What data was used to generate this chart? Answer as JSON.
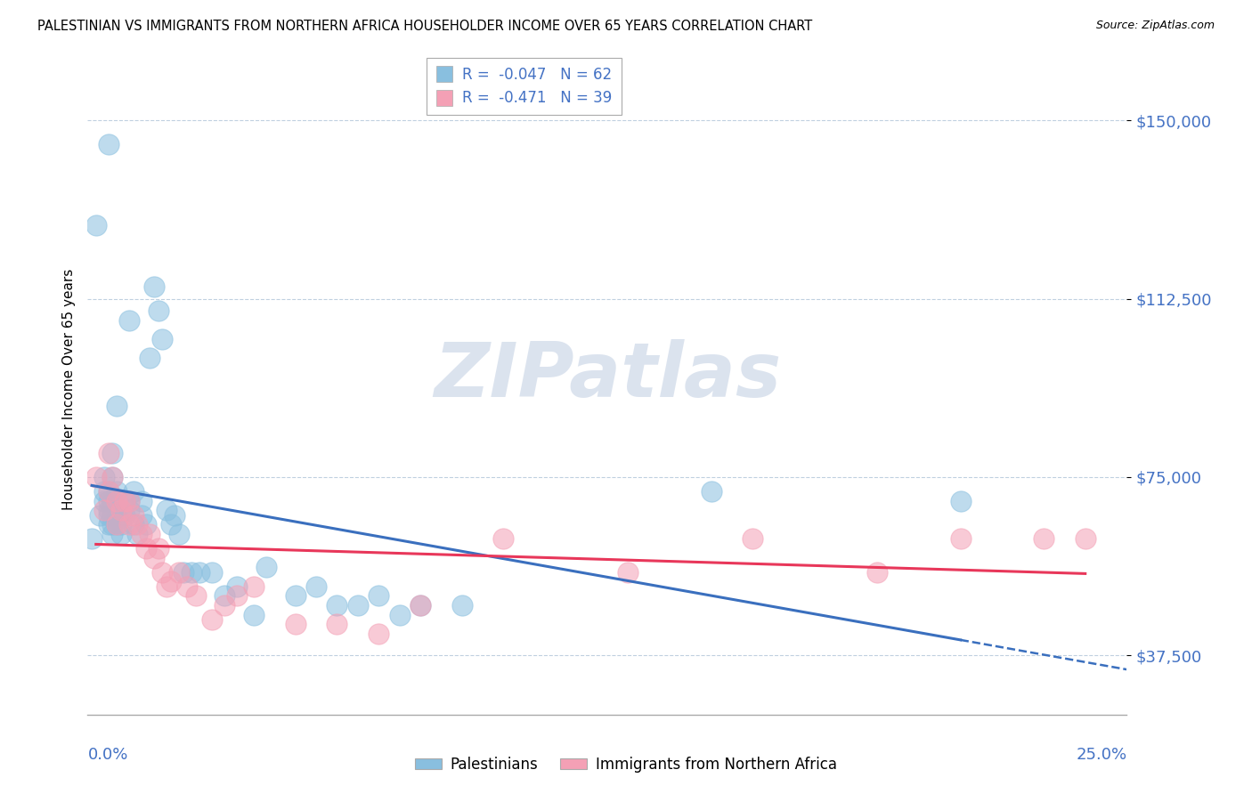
{
  "title": "PALESTINIAN VS IMMIGRANTS FROM NORTHERN AFRICA HOUSEHOLDER INCOME OVER 65 YEARS CORRELATION CHART",
  "source": "Source: ZipAtlas.com",
  "ylabel": "Householder Income Over 65 years",
  "xlim": [
    0.0,
    0.25
  ],
  "ylim": [
    25000,
    162000
  ],
  "yticks": [
    37500,
    75000,
    112500,
    150000
  ],
  "ytick_labels": [
    "$37,500",
    "$75,000",
    "$112,500",
    "$150,000"
  ],
  "color_blue": "#89bfdf",
  "color_pink": "#f4a0b5",
  "color_blue_line": "#3a6fbe",
  "color_pink_line": "#e8375a",
  "color_text": "#4472C4",
  "watermark_color": "#cdd8e8",
  "palestinian_x": [
    0.001,
    0.002,
    0.003,
    0.004,
    0.004,
    0.004,
    0.005,
    0.005,
    0.005,
    0.005,
    0.005,
    0.005,
    0.006,
    0.006,
    0.006,
    0.006,
    0.006,
    0.006,
    0.007,
    0.007,
    0.007,
    0.007,
    0.008,
    0.008,
    0.008,
    0.009,
    0.009,
    0.01,
    0.01,
    0.01,
    0.011,
    0.011,
    0.012,
    0.013,
    0.013,
    0.014,
    0.015,
    0.016,
    0.017,
    0.018,
    0.019,
    0.02,
    0.021,
    0.022,
    0.023,
    0.025,
    0.027,
    0.03,
    0.033,
    0.036,
    0.04,
    0.043,
    0.05,
    0.055,
    0.06,
    0.065,
    0.07,
    0.075,
    0.08,
    0.09,
    0.15,
    0.21
  ],
  "palestinian_y": [
    62000,
    128000,
    67000,
    70000,
    72000,
    75000,
    65000,
    67000,
    68000,
    70000,
    72000,
    145000,
    63000,
    65000,
    67000,
    70000,
    75000,
    80000,
    65000,
    68000,
    72000,
    90000,
    63000,
    65000,
    68000,
    67000,
    70000,
    68000,
    70000,
    108000,
    65000,
    72000,
    63000,
    67000,
    70000,
    65000,
    100000,
    115000,
    110000,
    104000,
    68000,
    65000,
    67000,
    63000,
    55000,
    55000,
    55000,
    55000,
    50000,
    52000,
    46000,
    56000,
    50000,
    52000,
    48000,
    48000,
    50000,
    46000,
    48000,
    48000,
    72000,
    70000
  ],
  "northern_africa_x": [
    0.002,
    0.004,
    0.005,
    0.005,
    0.006,
    0.007,
    0.007,
    0.008,
    0.009,
    0.01,
    0.01,
    0.011,
    0.012,
    0.013,
    0.014,
    0.015,
    0.016,
    0.017,
    0.018,
    0.019,
    0.02,
    0.022,
    0.024,
    0.026,
    0.03,
    0.033,
    0.036,
    0.04,
    0.05,
    0.06,
    0.07,
    0.08,
    0.1,
    0.13,
    0.16,
    0.19,
    0.21,
    0.23,
    0.24
  ],
  "northern_africa_y": [
    75000,
    68000,
    80000,
    72000,
    75000,
    70000,
    65000,
    68000,
    70000,
    65000,
    70000,
    67000,
    65000,
    63000,
    60000,
    63000,
    58000,
    60000,
    55000,
    52000,
    53000,
    55000,
    52000,
    50000,
    45000,
    48000,
    50000,
    52000,
    44000,
    44000,
    42000,
    48000,
    62000,
    55000,
    62000,
    55000,
    62000,
    62000,
    62000
  ]
}
